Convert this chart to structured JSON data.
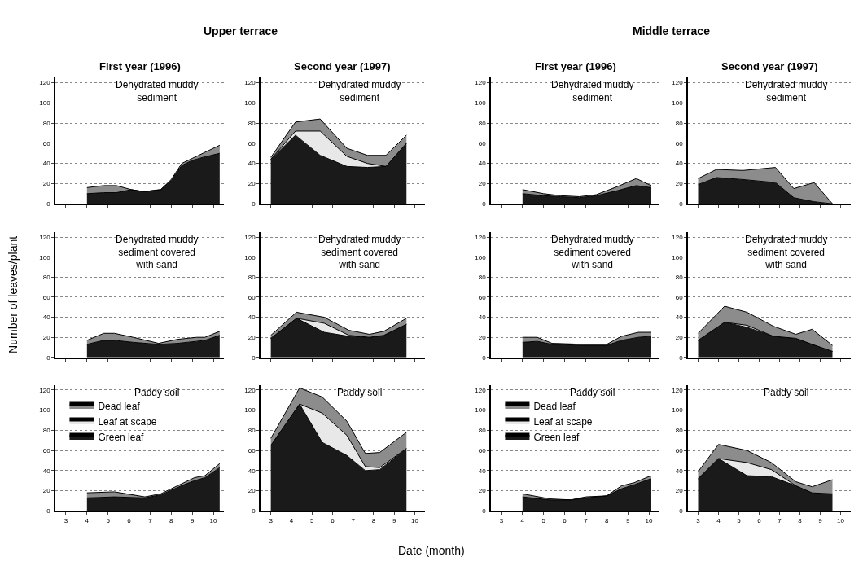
{
  "chart_data": [
    {
      "type": "area",
      "stacked": true,
      "title": "Dehydrated muddy sediment",
      "subtitle": "First year (1996)",
      "annotations": [
        "Upper terrace"
      ],
      "x": [
        4,
        4.8,
        5.4,
        6.1,
        6.7,
        7.5,
        8.0,
        8.5,
        9.0,
        9.5,
        10.3
      ],
      "series": [
        {
          "color": "#1a1a1a",
          "values": [
            10,
            11,
            11,
            14,
            12,
            14,
            23,
            38,
            43,
            46,
            50
          ]
        },
        {
          "color": "#8c8c8c",
          "values": [
            6,
            7,
            7,
            0,
            0,
            0,
            1,
            2,
            2,
            4,
            8
          ]
        }
      ],
      "xlim": [
        2.5,
        10.5
      ],
      "xticks": [
        3,
        4,
        5,
        6,
        7,
        8,
        9,
        10
      ],
      "ylim": [
        0,
        125
      ],
      "yticks": [
        0,
        20,
        40,
        60,
        80,
        100,
        120
      ],
      "grid": "y",
      "tick_labels": "y"
    },
    {
      "type": "area",
      "stacked": true,
      "title": "Dehydrated muddy sediment covered with sand",
      "ylabel": "Number of leaves/plant",
      "x": [
        4,
        4.8,
        5.3,
        6.2,
        7.4,
        8.3,
        9.2,
        9.6,
        10.3
      ],
      "series": [
        {
          "color": "#1a1a1a",
          "values": [
            13,
            17,
            17,
            15,
            13,
            14,
            16,
            17,
            22
          ]
        },
        {
          "color": "#8c8c8c",
          "values": [
            4,
            7,
            7,
            5,
            1,
            4,
            4,
            3,
            4
          ]
        }
      ],
      "xlim": [
        2.5,
        10.5
      ],
      "xticks": [
        3,
        4,
        5,
        6,
        7,
        8,
        9,
        10
      ],
      "ylim": [
        0,
        125
      ],
      "yticks": [
        0,
        20,
        40,
        60,
        80,
        100,
        120
      ],
      "grid": "y",
      "tick_labels": "y"
    },
    {
      "type": "area",
      "stacked": true,
      "title": "Paddy soil",
      "legend": "top left",
      "x": [
        4,
        5.3,
        6.75,
        7.5,
        8.6,
        9.1,
        9.6,
        10.3
      ],
      "series": [
        {
          "name": "Green leaf",
          "color": "#1a1a1a",
          "values": [
            13,
            14,
            13,
            16,
            26,
            30,
            33,
            43
          ]
        },
        {
          "name": "Leaf at scape",
          "color": "#e8e8e8",
          "values": [
            null,
            null,
            null,
            null,
            null,
            null,
            null,
            null
          ]
        },
        {
          "name": "Dead leaf",
          "color": "#8c8c8c",
          "values": [
            5,
            5,
            1,
            1,
            2,
            3,
            2,
            4
          ]
        }
      ],
      "xlim": [
        2.5,
        10.5
      ],
      "xticks": [
        3,
        4,
        5,
        6,
        7,
        8,
        9,
        10
      ],
      "ylim": [
        0,
        125
      ],
      "yticks": [
        0,
        20,
        40,
        60,
        80,
        100,
        120
      ],
      "grid": "y"
    },
    {
      "type": "area",
      "stacked": true,
      "title": "Dehydrated muddy sediment",
      "subtitle": "Second year (1997)",
      "x": [
        3,
        4.2,
        5.4,
        6.7,
        7.7,
        8.6,
        9.6
      ],
      "series": [
        {
          "color": "#1a1a1a",
          "values": [
            44,
            68,
            48,
            37,
            36,
            37,
            60
          ]
        },
        {
          "color": "#e8e8e8",
          "values": [
            0,
            4,
            24,
            10,
            4,
            0,
            0
          ]
        },
        {
          "color": "#8c8c8c",
          "values": [
            2,
            9,
            12,
            8,
            8,
            11,
            8
          ]
        }
      ],
      "xlim": [
        2.5,
        10.5
      ],
      "xticks": [
        3,
        4,
        5,
        6,
        7,
        8,
        9,
        10
      ],
      "ylim": [
        0,
        125
      ],
      "yticks": [
        0,
        20,
        40,
        60,
        80,
        100,
        120
      ],
      "grid": "y",
      "tick_labels": "y"
    },
    {
      "type": "area",
      "stacked": true,
      "title": "Dehydrated muddy sediment covered with sand",
      "x": [
        3,
        4.25,
        5.6,
        6.8,
        7.8,
        8.5,
        9.6
      ],
      "series": [
        {
          "color": "#1a1a1a",
          "values": [
            19,
            39,
            25,
            21,
            20,
            22,
            33
          ]
        },
        {
          "color": "#e8e8e8",
          "values": [
            0,
            0,
            9,
            1,
            0,
            0,
            0
          ]
        },
        {
          "color": "#8c8c8c",
          "values": [
            3,
            6,
            6,
            5,
            3,
            4,
            6
          ]
        }
      ],
      "xlim": [
        2.5,
        10.5
      ],
      "xticks": [
        3,
        4,
        5,
        6,
        7,
        8,
        9,
        10
      ],
      "ylim": [
        0,
        125
      ],
      "yticks": [
        0,
        20,
        40,
        60,
        80,
        100,
        120
      ],
      "grid": "y",
      "tick_labels": "y"
    },
    {
      "type": "area",
      "stacked": true,
      "title": "Paddy soil",
      "xlabel": "Date (month)",
      "x": [
        3,
        4.4,
        5.5,
        6.7,
        7.6,
        8.3,
        9.6
      ],
      "series": [
        {
          "color": "#1a1a1a",
          "values": [
            65,
            106,
            68,
            55,
            40,
            41,
            62
          ]
        },
        {
          "color": "#e8e8e8",
          "values": [
            0,
            0,
            29,
            20,
            4,
            2,
            0
          ]
        },
        {
          "color": "#8c8c8c",
          "values": [
            7,
            16,
            16,
            14,
            13,
            15,
            16
          ]
        }
      ],
      "xlim": [
        2.5,
        10.5
      ],
      "xticks": [
        3,
        4,
        5,
        6,
        7,
        8,
        9,
        10
      ],
      "ylim": [
        0,
        125
      ],
      "yticks": [
        0,
        20,
        40,
        60,
        80,
        100,
        120
      ],
      "grid": "y"
    },
    {
      "type": "area",
      "stacked": true,
      "title": "Dehydrated muddy sediment",
      "subtitle": "First year (1996)",
      "annotations": [
        "Middle terrace"
      ],
      "x": [
        4,
        5,
        5.8,
        6.7,
        7.5,
        8.5,
        9.4,
        10.1
      ],
      "series": [
        {
          "color": "#1a1a1a",
          "values": [
            10,
            8,
            7,
            6,
            8,
            13,
            18,
            16
          ]
        },
        {
          "color": "#8c8c8c",
          "values": [
            4,
            2,
            1,
            1,
            1,
            4,
            7,
            2
          ]
        }
      ],
      "xlim": [
        2.5,
        10.5
      ],
      "xticks": [
        3,
        4,
        5,
        6,
        7,
        8,
        9,
        10
      ],
      "ylim": [
        0,
        125
      ],
      "yticks": [
        0,
        20,
        40,
        60,
        80,
        100,
        120
      ],
      "grid": "y",
      "tick_labels": "y"
    },
    {
      "type": "area",
      "stacked": true,
      "title": "Dehydrated muddy sediment covered with sand",
      "x": [
        4,
        4.7,
        5.4,
        6.9,
        8,
        8.7,
        9.5,
        10.1
      ],
      "series": [
        {
          "color": "#1a1a1a",
          "values": [
            15,
            16,
            13,
            12,
            12,
            17,
            20,
            21
          ]
        },
        {
          "color": "#8c8c8c",
          "values": [
            5,
            4,
            1,
            1,
            1,
            4,
            5,
            4
          ]
        }
      ],
      "xlim": [
        2.5,
        10.5
      ],
      "xticks": [
        3,
        4,
        5,
        6,
        7,
        8,
        9,
        10
      ],
      "ylim": [
        0,
        125
      ],
      "yticks": [
        0,
        20,
        40,
        60,
        80,
        100,
        120
      ],
      "grid": "y",
      "tick_labels": "y"
    },
    {
      "type": "area",
      "stacked": true,
      "title": "Paddy soil",
      "legend": "top left",
      "x": [
        4,
        5.3,
        6.3,
        7,
        8,
        8.7,
        9.3,
        10.1
      ],
      "series": [
        {
          "name": "Green leaf",
          "color": "#1a1a1a",
          "values": [
            14,
            11,
            11,
            13,
            15,
            22,
            26,
            32
          ]
        },
        {
          "name": "Leaf at scape",
          "color": "#e8e8e8",
          "values": [
            null,
            null,
            null,
            null,
            null,
            null,
            null,
            null
          ]
        },
        {
          "name": "Dead leaf",
          "color": "#8c8c8c",
          "values": [
            3,
            1,
            0,
            1,
            0,
            3,
            2,
            3
          ]
        }
      ],
      "xlim": [
        2.5,
        10.5
      ],
      "xticks": [
        3,
        4,
        5,
        6,
        7,
        8,
        9,
        10
      ],
      "ylim": [
        0,
        125
      ],
      "yticks": [
        0,
        20,
        40,
        60,
        80,
        100,
        120
      ],
      "grid": "y"
    },
    {
      "type": "area",
      "stacked": true,
      "title": "Dehydrated muddy sediment",
      "subtitle": "Second year (1997)",
      "x": [
        3,
        3.9,
        5.2,
        6.8,
        7.7,
        8.7,
        9.6
      ],
      "series": [
        {
          "color": "#1a1a1a",
          "values": [
            19,
            26,
            24,
            21,
            6,
            2,
            0
          ]
        },
        {
          "color": "#8c8c8c",
          "values": [
            6,
            8,
            9,
            15,
            9,
            19,
            0
          ]
        }
      ],
      "xlim": [
        2.5,
        10.5
      ],
      "xticks": [
        3,
        4,
        5,
        6,
        7,
        8,
        9,
        10
      ],
      "ylim": [
        0,
        125
      ],
      "yticks": [
        0,
        20,
        40,
        60,
        80,
        100,
        120
      ],
      "grid": "y",
      "tick_labels": "y"
    },
    {
      "type": "area",
      "stacked": true,
      "title": "Dehydrated muddy sediment covered with sand",
      "x": [
        3,
        4.3,
        5.4,
        6.7,
        7.8,
        8.6,
        9.6
      ],
      "series": [
        {
          "color": "#1a1a1a",
          "values": [
            17,
            35,
            30,
            21,
            19,
            13,
            6
          ]
        },
        {
          "color": "#e8e8e8",
          "values": [
            0,
            0,
            2,
            0,
            0,
            0,
            0
          ]
        },
        {
          "color": "#8c8c8c",
          "values": [
            7,
            16,
            13,
            10,
            4,
            15,
            6
          ]
        }
      ],
      "xlim": [
        2.5,
        10.5
      ],
      "xticks": [
        3,
        4,
        5,
        6,
        7,
        8,
        9,
        10
      ],
      "ylim": [
        0,
        125
      ],
      "yticks": [
        0,
        20,
        40,
        60,
        80,
        100,
        120
      ],
      "grid": "y",
      "tick_labels": "y"
    },
    {
      "type": "area",
      "stacked": true,
      "title": "Paddy soil",
      "x": [
        3,
        4,
        5.4,
        6.6,
        7.8,
        8.6,
        9.6
      ],
      "series": [
        {
          "color": "#1a1a1a",
          "values": [
            32,
            52,
            35,
            34,
            25,
            18,
            17
          ]
        },
        {
          "color": "#e8e8e8",
          "values": [
            0,
            0,
            13,
            7,
            0,
            0,
            0
          ]
        },
        {
          "color": "#8c8c8c",
          "values": [
            7,
            14,
            12,
            7,
            4,
            6,
            14
          ]
        }
      ],
      "xlim": [
        2.5,
        10.5
      ],
      "xticks": [
        3,
        4,
        5,
        6,
        7,
        8,
        9,
        10
      ],
      "ylim": [
        0,
        125
      ],
      "yticks": [
        0,
        20,
        40,
        60,
        80,
        100,
        120
      ],
      "grid": "y"
    }
  ]
}
